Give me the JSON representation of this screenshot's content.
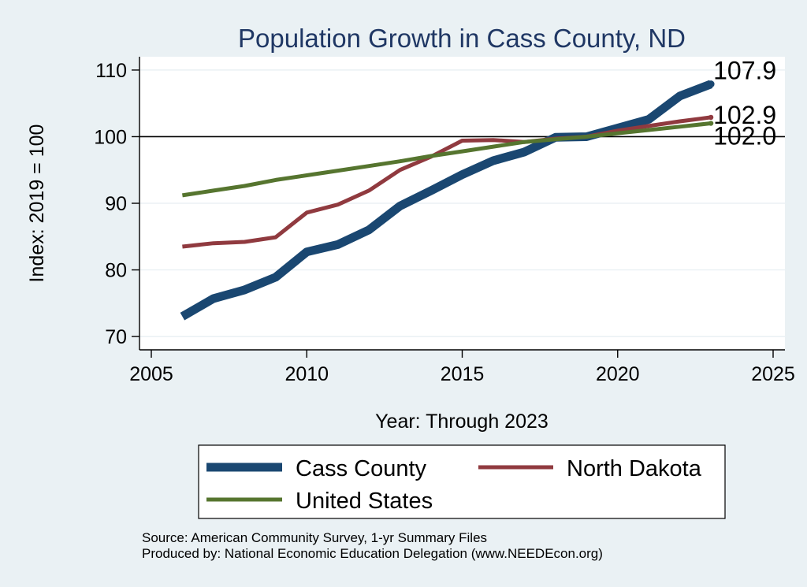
{
  "chart_data": {
    "type": "line",
    "title": "Population Growth in Cass County, ND",
    "xlabel": "Year: Through 2023",
    "ylabel": "Index: 2019 = 100",
    "xlim": [
      2005,
      2025
    ],
    "ylim": [
      68,
      112
    ],
    "x_ticks": [
      2005,
      2010,
      2015,
      2020,
      2025
    ],
    "y_ticks": [
      70,
      80,
      90,
      100,
      110
    ],
    "reference_line": 100,
    "x": [
      2006,
      2007,
      2008,
      2009,
      2010,
      2011,
      2012,
      2013,
      2014,
      2015,
      2016,
      2017,
      2018,
      2019,
      2020,
      2021,
      2022,
      2023
    ],
    "series": [
      {
        "name": "Cass  County",
        "color": "#1a4771",
        "values": [
          73.0,
          75.7,
          77.0,
          78.9,
          82.7,
          83.8,
          86.0,
          89.6,
          91.9,
          94.3,
          96.4,
          97.7,
          99.9,
          100.0,
          101.3,
          102.6,
          106.1,
          107.9
        ],
        "end_label": "107.9"
      },
      {
        "name": "North Dakota",
        "color": "#903a3f",
        "values": [
          83.5,
          84.0,
          84.2,
          84.9,
          88.6,
          89.8,
          91.9,
          95.0,
          97.0,
          99.4,
          99.5,
          99.2,
          99.7,
          100.0,
          100.9,
          101.6,
          102.3,
          102.9
        ],
        "end_label": "102.9"
      },
      {
        "name": "United States",
        "color": "#56752f",
        "values": [
          91.2,
          91.9,
          92.6,
          93.5,
          94.2,
          94.9,
          95.6,
          96.3,
          97.1,
          97.8,
          98.5,
          99.2,
          99.6,
          100.0,
          100.5,
          101.0,
          101.5,
          102.0
        ],
        "end_label": "102.0"
      }
    ],
    "legend_position": "bottom"
  },
  "footnotes": {
    "source": "Source: American Community Survey, 1-yr Summary Files",
    "produced": "Produced by: National Economic Education Delegation (www.NEEDEcon.org)"
  }
}
